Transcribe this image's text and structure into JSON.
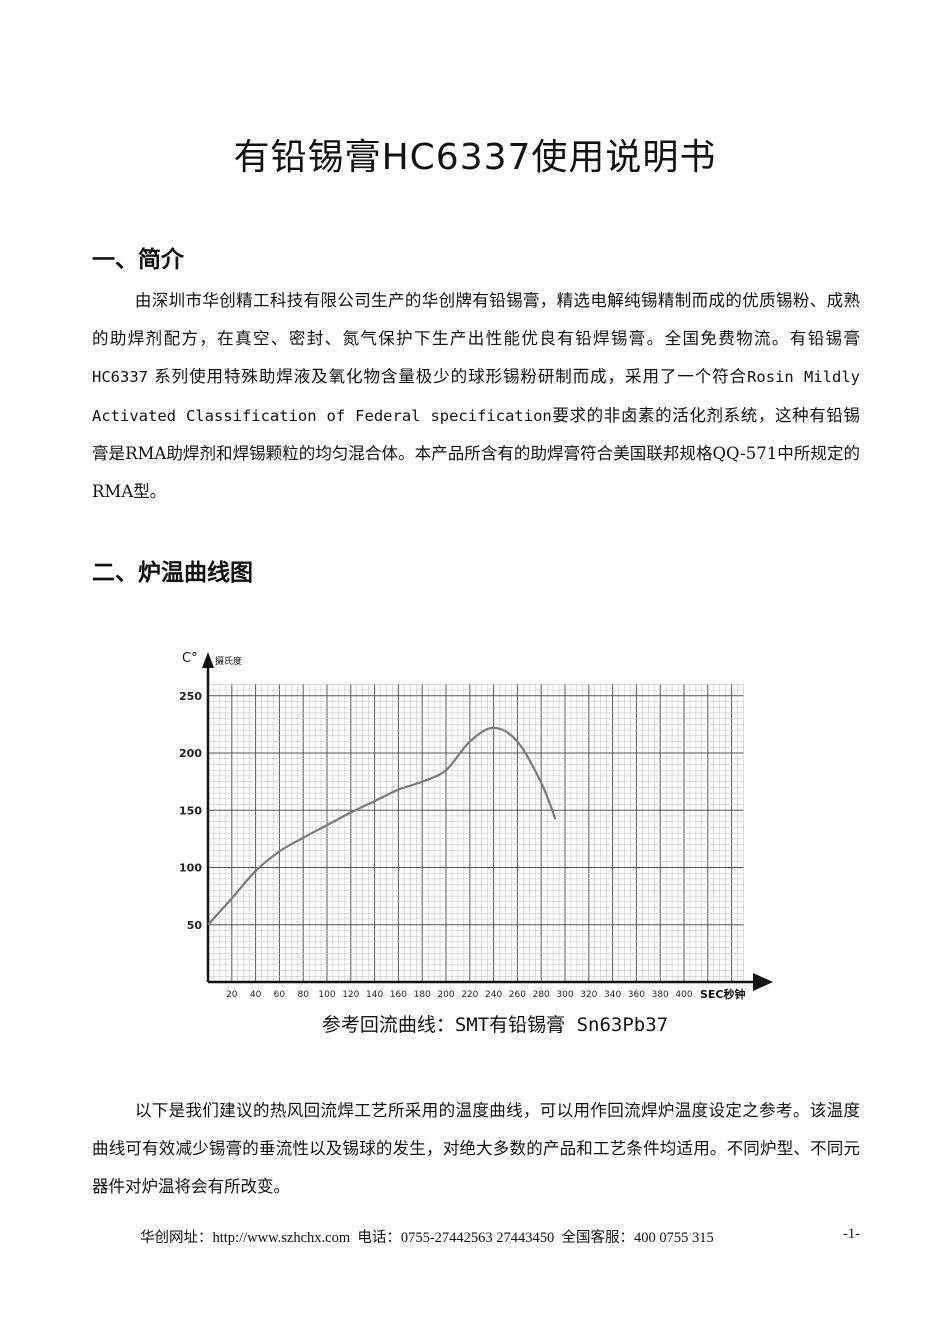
{
  "document": {
    "title": "有铅锡膏HC6337使用说明书",
    "section1": {
      "heading": "一、简介",
      "paragraph_a": "由深圳市华创精工科技有限公司生产的华创牌有铅锡膏，精选电解纯锡精制而成的优质锡粉、成熟的助焊剂配方，在真空、密封、氮气保护下生产出性能优良有铅焊锡膏。全国免费物流。有铅锡膏",
      "paragraph_code": "HC6337",
      "paragraph_b": "系列使用特殊助焊液及氧化物含量极少的球形锡粉研制而成，采用了一个符合",
      "paragraph_spec": "Rosin Mildly Activated Classification of Federal specification",
      "paragraph_c": "要求的非卤素的活化剂系统，这种有铅锡膏是RMA助焊剂和焊锡颗粒的均匀混合体。本产品所含有的助焊膏符合美国联邦规格QQ-571中所规定的RMA型。"
    },
    "section2": {
      "heading": "二、炉温曲线图",
      "caption": "参考回流曲线：SMT有铅锡膏 Sn63Pb37",
      "paragraph": "以下是我们建议的热风回流焊工艺所采用的温度曲线，可以用作回流焊炉温度设定之参考。该温度曲线可有效减少锡膏的垂流性以及锡球的发生，对绝大多数的产品和工艺条件均适用。不同炉型、不同元器件对炉温将会有所改变。"
    },
    "footer": {
      "text": "华创网址：http://www.szhchx.com  电话：0755-27442563 27443450  全国客服：400 0755 315",
      "page": "-1-"
    }
  },
  "chart_data": {
    "type": "line",
    "title": "",
    "ylabel_unit": "C°",
    "ylabel": "摄氏度",
    "xlabel": "SEC秒钟",
    "xlim": [
      0,
      450
    ],
    "ylim": [
      0,
      260
    ],
    "xticks": [
      20,
      40,
      60,
      80,
      100,
      120,
      140,
      160,
      180,
      200,
      220,
      240,
      260,
      280,
      300,
      320,
      340,
      360,
      380,
      400
    ],
    "yticks": [
      50,
      100,
      150,
      200,
      250
    ],
    "grid": true,
    "line_color": "#7a7a7a",
    "x": [
      0,
      20,
      40,
      60,
      80,
      100,
      120,
      140,
      160,
      180,
      200,
      220,
      240,
      260,
      280,
      292
    ],
    "y": [
      50,
      73,
      97,
      114,
      126,
      137,
      148,
      158,
      168,
      175,
      185,
      210,
      222,
      210,
      174,
      142
    ]
  }
}
